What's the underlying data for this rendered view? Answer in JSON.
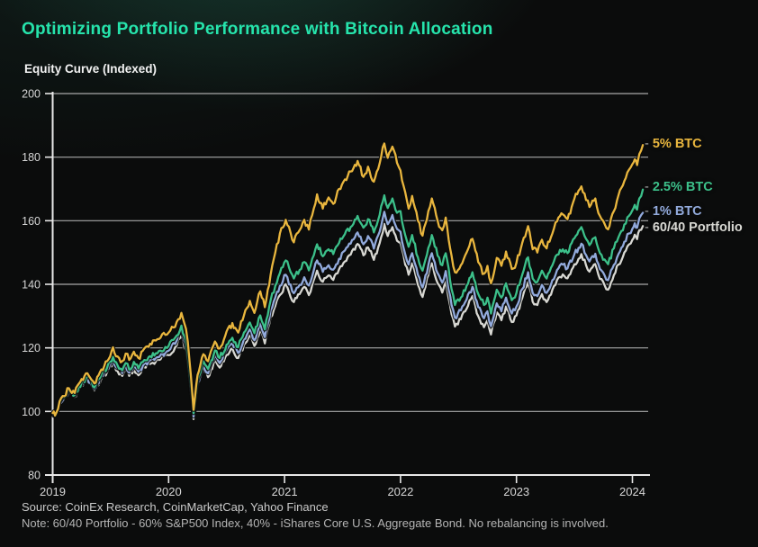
{
  "page": {
    "title": "Optimizing Portfolio Performance with Bitcoin Allocation",
    "source": "Source: CoinEx Research, CoinMarketCap, Yahoo Finance",
    "note": "Note: 60/40 Portfolio - 60% S&P500 Index, 40% - iShares Core U.S. Aggregate Bond. No rebalancing is involved.",
    "accent_color": "#26e4ac"
  },
  "chart_data": {
    "type": "line",
    "title": "Equity Curve (Indexed)",
    "xlabel": "",
    "ylabel": "",
    "x_ticks": [
      "2019",
      "2020",
      "2021",
      "2022",
      "2023",
      "2024"
    ],
    "y_ticks": [
      80,
      100,
      120,
      140,
      160,
      180,
      200
    ],
    "xlim": [
      2019,
      2024.3
    ],
    "ylim": [
      80,
      200
    ],
    "grid": "horizontal",
    "legend_position": "right-of-line-end",
    "series": [
      {
        "name": "5% BTC",
        "color": "#e9b63e",
        "x": [
          2019.0,
          2019.02,
          2019.06,
          2019.1,
          2019.14,
          2019.19,
          2019.25,
          2019.3,
          2019.36,
          2019.42,
          2019.47,
          2019.52,
          2019.56,
          2019.6,
          2019.63,
          2019.66,
          2019.7,
          2019.74,
          2019.79,
          2019.84,
          2019.89,
          2019.93,
          2020.0,
          2020.07,
          2020.11,
          2020.15,
          2020.18,
          2020.215,
          2020.25,
          2020.3,
          2020.34,
          2020.4,
          2020.44,
          2020.5,
          2020.55,
          2020.6,
          2020.65,
          2020.7,
          2020.74,
          2020.79,
          2020.83,
          2020.88,
          2020.92,
          2020.96,
          2021.01,
          2021.08,
          2021.13,
          2021.17,
          2021.21,
          2021.28,
          2021.33,
          2021.38,
          2021.42,
          2021.47,
          2021.52,
          2021.57,
          2021.63,
          2021.68,
          2021.72,
          2021.77,
          2021.82,
          2021.86,
          2021.89,
          2021.93,
          2021.97,
          2022.0,
          2022.04,
          2022.07,
          2022.1,
          2022.15,
          2022.19,
          2022.24,
          2022.27,
          2022.32,
          2022.36,
          2022.39,
          2022.44,
          2022.47,
          2022.52,
          2022.57,
          2022.62,
          2022.67,
          2022.72,
          2022.75,
          2022.78,
          2022.83,
          2022.87,
          2022.91,
          2022.96,
          2023.0,
          2023.05,
          2023.1,
          2023.14,
          2023.18,
          2023.22,
          2023.26,
          2023.31,
          2023.35,
          2023.4,
          2023.44,
          2023.5,
          2023.56,
          2023.6,
          2023.63,
          2023.68,
          2023.72,
          2023.76,
          2023.79,
          2023.84,
          2023.88,
          2023.93,
          2023.97,
          2024.0,
          2024.02,
          2024.04,
          2024.06,
          2024.09
        ],
        "values": [
          99.5,
          98.7,
          103.2,
          104.8,
          107.3,
          105.8,
          110.2,
          112.0,
          108.8,
          113.2,
          115.8,
          120.2,
          117.3,
          115.8,
          118.2,
          116.2,
          118.8,
          116.8,
          119.8,
          121.3,
          122.3,
          123.2,
          124.8,
          128.2,
          131.0,
          126.0,
          116.0,
          100.5,
          111.5,
          118.0,
          115.8,
          122.0,
          119.8,
          125.2,
          127.8,
          124.8,
          130.2,
          134.8,
          131.0,
          137.8,
          132.8,
          143.0,
          150.0,
          156.0,
          160.3,
          153.2,
          157.0,
          160.3,
          157.2,
          168.3,
          163.8,
          167.3,
          165.3,
          170.0,
          173.0,
          175.5,
          178.8,
          173.8,
          177.0,
          172.3,
          178.0,
          184.3,
          179.8,
          183.3,
          178.2,
          175.8,
          169.0,
          163.8,
          167.8,
          160.0,
          155.3,
          163.0,
          167.0,
          160.0,
          157.0,
          161.0,
          149.0,
          143.8,
          146.0,
          150.0,
          154.3,
          147.0,
          143.3,
          145.8,
          140.3,
          148.3,
          145.8,
          150.3,
          144.8,
          146.8,
          153.0,
          158.3,
          151.0,
          150.0,
          154.0,
          151.3,
          156.0,
          159.8,
          162.0,
          160.5,
          167.0,
          170.8,
          166.5,
          164.3,
          167.0,
          161.5,
          159.0,
          157.3,
          163.0,
          168.0,
          172.5,
          176.0,
          177.8,
          179.3,
          177.5,
          181.0,
          183.8
        ]
      },
      {
        "name": "2.5% BTC",
        "color": "#3cc08a",
        "x": [
          2019.0,
          2019.02,
          2019.06,
          2019.1,
          2019.14,
          2019.19,
          2019.25,
          2019.3,
          2019.36,
          2019.42,
          2019.47,
          2019.52,
          2019.56,
          2019.6,
          2019.63,
          2019.66,
          2019.7,
          2019.74,
          2019.79,
          2019.84,
          2019.89,
          2019.93,
          2020.0,
          2020.07,
          2020.11,
          2020.15,
          2020.18,
          2020.215,
          2020.25,
          2020.3,
          2020.34,
          2020.4,
          2020.44,
          2020.5,
          2020.55,
          2020.6,
          2020.65,
          2020.7,
          2020.74,
          2020.79,
          2020.83,
          2020.88,
          2020.92,
          2020.96,
          2021.01,
          2021.08,
          2021.13,
          2021.17,
          2021.21,
          2021.28,
          2021.33,
          2021.38,
          2021.42,
          2021.47,
          2021.52,
          2021.57,
          2021.63,
          2021.68,
          2021.72,
          2021.77,
          2021.82,
          2021.86,
          2021.89,
          2021.93,
          2021.97,
          2022.0,
          2022.04,
          2022.07,
          2022.1,
          2022.15,
          2022.19,
          2022.24,
          2022.27,
          2022.32,
          2022.36,
          2022.39,
          2022.44,
          2022.47,
          2022.52,
          2022.57,
          2022.62,
          2022.67,
          2022.72,
          2022.75,
          2022.78,
          2022.83,
          2022.87,
          2022.91,
          2022.96,
          2023.0,
          2023.05,
          2023.1,
          2023.14,
          2023.18,
          2023.22,
          2023.26,
          2023.31,
          2023.35,
          2023.4,
          2023.44,
          2023.5,
          2023.56,
          2023.6,
          2023.63,
          2023.68,
          2023.72,
          2023.76,
          2023.79,
          2023.84,
          2023.88,
          2023.93,
          2023.97,
          2024.0,
          2024.02,
          2024.04,
          2024.06,
          2024.09
        ],
        "values": [
          99.4,
          98.6,
          102.9,
          104.4,
          106.7,
          105.2,
          109.2,
          110.9,
          107.6,
          111.6,
          113.8,
          117.2,
          114.5,
          113.0,
          115.2,
          113.2,
          115.6,
          113.6,
          116.2,
          117.4,
          118.3,
          119.1,
          120.6,
          123.9,
          127.0,
          122.2,
          112.5,
          99.5,
          109.8,
          115.8,
          113.4,
          119.2,
          116.8,
          121.0,
          123.2,
          120.2,
          124.8,
          128.0,
          124.6,
          130.2,
          125.8,
          135.0,
          139.5,
          143.5,
          147.5,
          141.8,
          144.5,
          147.0,
          144.4,
          152.6,
          148.8,
          151.0,
          149.5,
          153.0,
          155.8,
          158.0,
          161.5,
          157.8,
          160.5,
          156.3,
          161.8,
          168.0,
          164.0,
          167.0,
          162.5,
          163.0,
          155.5,
          151.8,
          155.5,
          148.5,
          144.3,
          151.5,
          155.5,
          149.0,
          146.0,
          149.8,
          138.5,
          133.5,
          135.8,
          139.5,
          143.8,
          137.0,
          133.5,
          135.8,
          130.8,
          138.3,
          135.8,
          140.3,
          135.0,
          137.3,
          143.0,
          148.5,
          141.8,
          140.8,
          144.3,
          141.8,
          146.0,
          149.3,
          151.0,
          149.8,
          154.5,
          158.0,
          154.3,
          152.3,
          154.8,
          149.8,
          147.8,
          146.3,
          151.3,
          154.8,
          158.8,
          161.5,
          163.3,
          165.0,
          163.5,
          167.0,
          169.8
        ]
      },
      {
        "name": "1% BTC",
        "color": "#92aadc",
        "x": [
          2019.0,
          2019.02,
          2019.06,
          2019.1,
          2019.14,
          2019.19,
          2019.25,
          2019.3,
          2019.36,
          2019.42,
          2019.47,
          2019.52,
          2019.56,
          2019.6,
          2019.63,
          2019.66,
          2019.7,
          2019.74,
          2019.79,
          2019.84,
          2019.89,
          2019.93,
          2020.0,
          2020.07,
          2020.11,
          2020.15,
          2020.18,
          2020.215,
          2020.25,
          2020.3,
          2020.34,
          2020.4,
          2020.44,
          2020.5,
          2020.55,
          2020.6,
          2020.65,
          2020.7,
          2020.74,
          2020.79,
          2020.83,
          2020.88,
          2020.92,
          2020.96,
          2021.01,
          2021.08,
          2021.13,
          2021.17,
          2021.21,
          2021.28,
          2021.33,
          2021.38,
          2021.42,
          2021.47,
          2021.52,
          2021.57,
          2021.63,
          2021.68,
          2021.72,
          2021.77,
          2021.82,
          2021.86,
          2021.89,
          2021.93,
          2021.97,
          2022.0,
          2022.04,
          2022.07,
          2022.1,
          2022.15,
          2022.19,
          2022.24,
          2022.27,
          2022.32,
          2022.36,
          2022.39,
          2022.44,
          2022.47,
          2022.52,
          2022.57,
          2022.62,
          2022.67,
          2022.72,
          2022.75,
          2022.78,
          2022.83,
          2022.87,
          2022.91,
          2022.96,
          2023.0,
          2023.05,
          2023.1,
          2023.14,
          2023.18,
          2023.22,
          2023.26,
          2023.31,
          2023.35,
          2023.4,
          2023.44,
          2023.5,
          2023.56,
          2023.6,
          2023.63,
          2023.68,
          2023.72,
          2023.76,
          2023.79,
          2023.84,
          2023.88,
          2023.93,
          2023.97,
          2024.0,
          2024.02,
          2024.04,
          2024.06,
          2024.09
        ],
        "values": [
          99.4,
          98.5,
          102.8,
          104.2,
          106.4,
          104.9,
          108.8,
          110.4,
          107.1,
          111.0,
          113.1,
          116.3,
          113.6,
          112.1,
          114.2,
          112.2,
          114.5,
          112.5,
          115.0,
          116.1,
          116.9,
          117.7,
          119.1,
          122.3,
          125.4,
          120.7,
          111.0,
          98.4,
          108.6,
          114.4,
          112.0,
          117.6,
          115.2,
          119.3,
          121.4,
          118.4,
          122.8,
          125.8,
          122.4,
          127.8,
          123.4,
          131.8,
          135.8,
          139.5,
          143.0,
          137.2,
          139.8,
          142.2,
          139.6,
          147.5,
          143.9,
          146.0,
          144.6,
          148.0,
          150.6,
          152.8,
          156.3,
          152.6,
          155.2,
          151.2,
          156.5,
          162.8,
          158.9,
          161.8,
          157.4,
          156.5,
          149.5,
          146.2,
          149.8,
          143.0,
          139.0,
          146.0,
          149.8,
          143.5,
          140.5,
          144.2,
          133.5,
          129.5,
          131.8,
          135.2,
          139.2,
          132.8,
          129.3,
          131.5,
          126.8,
          134.0,
          131.5,
          135.8,
          130.8,
          133.0,
          138.5,
          143.8,
          137.3,
          136.3,
          139.8,
          137.3,
          141.3,
          144.5,
          146.2,
          145.0,
          149.5,
          152.8,
          149.2,
          147.2,
          149.6,
          144.8,
          142.8,
          141.3,
          146.1,
          149.5,
          153.4,
          156.0,
          157.5,
          159.2,
          157.8,
          160.8,
          162.5
        ]
      },
      {
        "name": "60/40 Portfolio",
        "color": "#d8d8d3",
        "x": [
          2019.0,
          2019.02,
          2019.06,
          2019.1,
          2019.14,
          2019.19,
          2019.25,
          2019.3,
          2019.36,
          2019.42,
          2019.47,
          2019.52,
          2019.56,
          2019.6,
          2019.63,
          2019.66,
          2019.7,
          2019.74,
          2019.79,
          2019.84,
          2019.89,
          2019.93,
          2020.0,
          2020.07,
          2020.11,
          2020.15,
          2020.18,
          2020.215,
          2020.25,
          2020.3,
          2020.34,
          2020.4,
          2020.44,
          2020.5,
          2020.55,
          2020.6,
          2020.65,
          2020.7,
          2020.74,
          2020.79,
          2020.83,
          2020.88,
          2020.92,
          2020.96,
          2021.01,
          2021.08,
          2021.13,
          2021.17,
          2021.21,
          2021.28,
          2021.33,
          2021.38,
          2021.42,
          2021.47,
          2021.52,
          2021.57,
          2021.63,
          2021.68,
          2021.72,
          2021.77,
          2021.82,
          2021.86,
          2021.89,
          2021.93,
          2021.97,
          2022.0,
          2022.04,
          2022.07,
          2022.1,
          2022.15,
          2022.19,
          2022.24,
          2022.27,
          2022.32,
          2022.36,
          2022.39,
          2022.44,
          2022.47,
          2022.52,
          2022.57,
          2022.62,
          2022.67,
          2022.72,
          2022.75,
          2022.78,
          2022.83,
          2022.87,
          2022.91,
          2022.96,
          2023.0,
          2023.05,
          2023.1,
          2023.14,
          2023.18,
          2023.22,
          2023.26,
          2023.31,
          2023.35,
          2023.4,
          2023.44,
          2023.5,
          2023.56,
          2023.6,
          2023.63,
          2023.68,
          2023.72,
          2023.76,
          2023.79,
          2023.84,
          2023.88,
          2023.93,
          2023.97,
          2024.0,
          2024.02,
          2024.04,
          2024.06,
          2024.09
        ],
        "values": [
          99.3,
          98.5,
          102.7,
          104.0,
          106.1,
          104.6,
          108.4,
          109.9,
          106.6,
          110.4,
          112.4,
          115.4,
          112.7,
          111.2,
          113.2,
          111.2,
          113.4,
          111.4,
          113.9,
          114.9,
          115.7,
          116.4,
          117.7,
          120.8,
          123.9,
          119.2,
          109.8,
          97.6,
          107.6,
          113.2,
          110.8,
          116.2,
          113.8,
          117.8,
          119.8,
          116.8,
          121.0,
          123.9,
          120.6,
          125.8,
          121.4,
          129.6,
          133.2,
          136.6,
          140.0,
          134.4,
          136.9,
          139.2,
          136.6,
          144.3,
          140.8,
          142.8,
          141.4,
          144.7,
          147.2,
          149.3,
          152.7,
          149.1,
          151.6,
          147.7,
          152.9,
          159.0,
          155.2,
          158.0,
          153.7,
          153.0,
          146.2,
          143.0,
          146.6,
          139.9,
          136.0,
          142.9,
          146.6,
          140.4,
          137.4,
          141.0,
          130.6,
          126.7,
          129.0,
          132.3,
          136.3,
          130.0,
          126.5,
          128.7,
          124.2,
          131.2,
          128.7,
          133.0,
          128.1,
          130.2,
          135.6,
          140.8,
          134.5,
          133.5,
          136.9,
          134.4,
          138.3,
          141.4,
          143.1,
          141.9,
          146.3,
          149.5,
          146.0,
          144.0,
          146.4,
          141.7,
          139.7,
          138.3,
          142.9,
          146.2,
          150.0,
          152.5,
          154.0,
          155.6,
          154.2,
          157.0,
          158.3
        ]
      }
    ]
  }
}
